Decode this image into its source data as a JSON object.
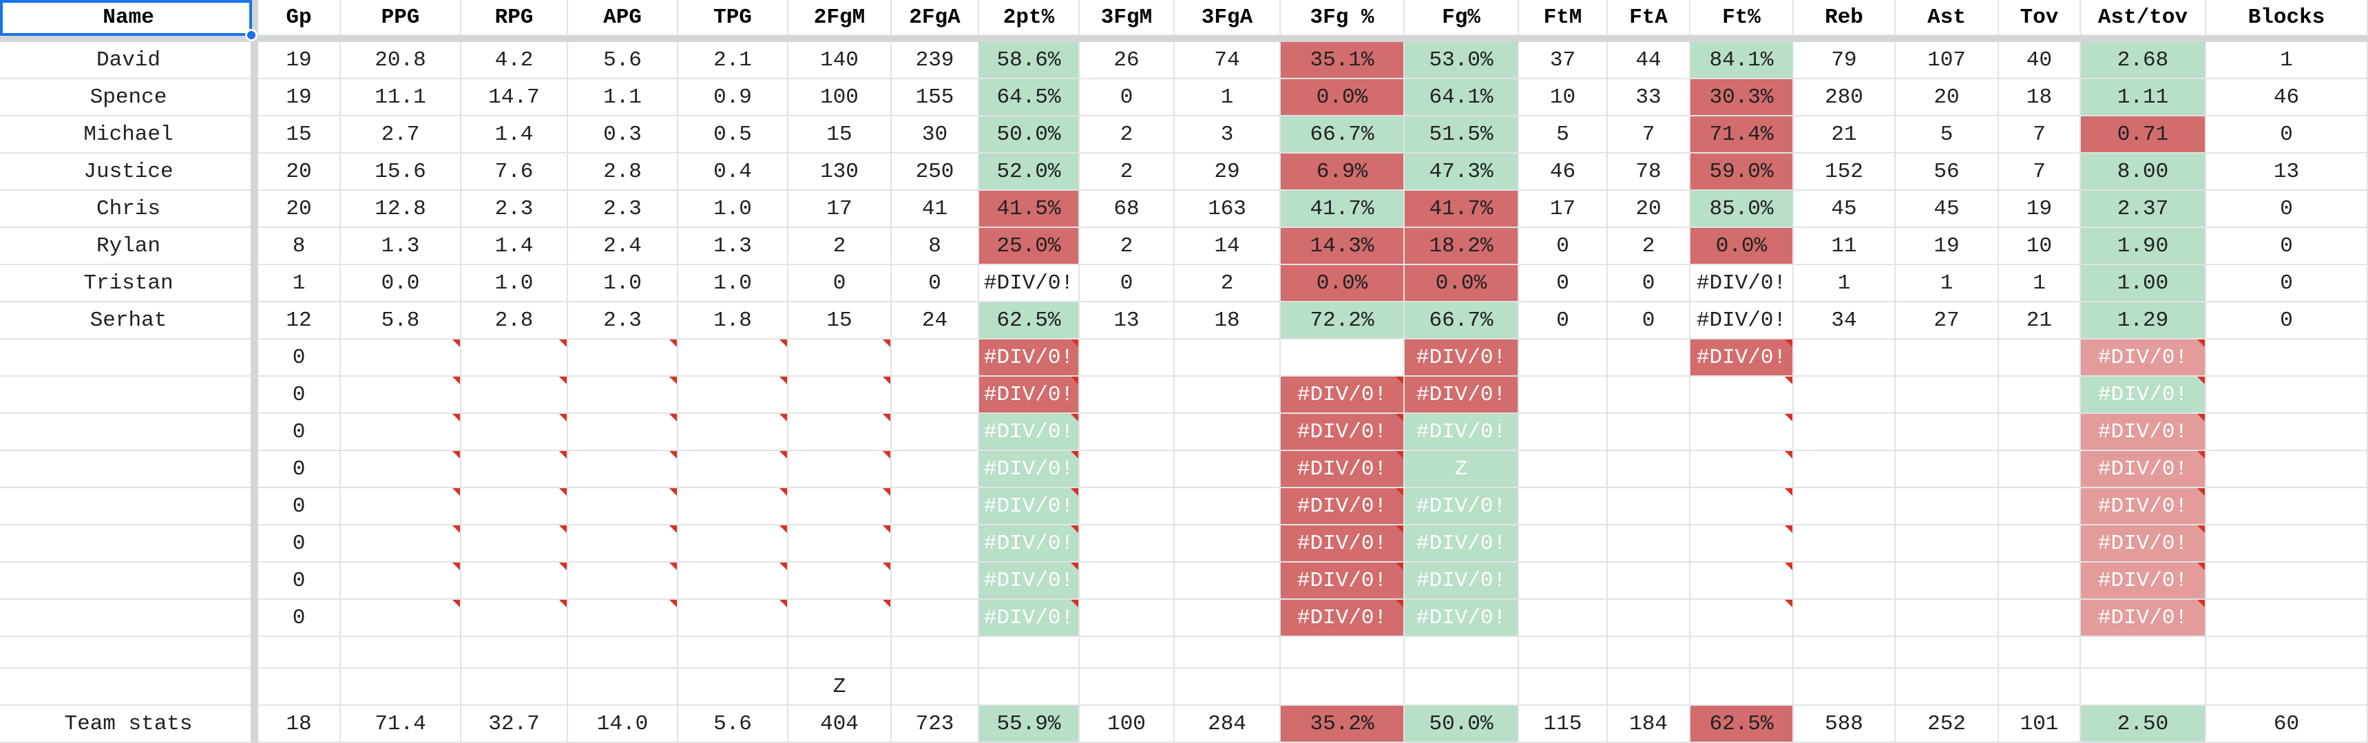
{
  "headers": [
    "Name",
    "Gp",
    "PPG",
    "RPG",
    "APG",
    "TPG",
    "2FgM",
    "2FgA",
    "2pt%",
    "3FgM",
    "3FgA",
    "3Fg %",
    "Fg%",
    "FtM",
    "FtA",
    "Ft%",
    "Reb",
    "Ast",
    "Tov",
    "Ast/tov",
    "Blocks"
  ],
  "players": [
    {
      "cells": [
        "David",
        "19",
        "20.8",
        "4.2",
        "5.6",
        "2.1",
        "140",
        "239",
        "58.6%",
        "26",
        "74",
        "35.1%",
        "53.0%",
        "37",
        "44",
        "84.1%",
        "79",
        "107",
        "40",
        "2.68",
        "1"
      ],
      "styles": {
        "8": "green",
        "11": "red",
        "12": "green",
        "15": "green",
        "19": "green"
      }
    },
    {
      "cells": [
        "Spence",
        "19",
        "11.1",
        "14.7",
        "1.1",
        "0.9",
        "100",
        "155",
        "64.5%",
        "0",
        "1",
        "0.0%",
        "64.1%",
        "10",
        "33",
        "30.3%",
        "280",
        "20",
        "18",
        "1.11",
        "46"
      ],
      "styles": {
        "8": "green",
        "11": "red",
        "12": "green",
        "15": "red",
        "19": "green"
      }
    },
    {
      "cells": [
        "Michael",
        "15",
        "2.7",
        "1.4",
        "0.3",
        "0.5",
        "15",
        "30",
        "50.0%",
        "2",
        "3",
        "66.7%",
        "51.5%",
        "5",
        "7",
        "71.4%",
        "21",
        "5",
        "7",
        "0.71",
        "0"
      ],
      "styles": {
        "8": "green",
        "11": "green",
        "12": "green",
        "15": "red",
        "19": "red"
      }
    },
    {
      "cells": [
        "Justice",
        "20",
        "15.6",
        "7.6",
        "2.8",
        "0.4",
        "130",
        "250",
        "52.0%",
        "2",
        "29",
        "6.9%",
        "47.3%",
        "46",
        "78",
        "59.0%",
        "152",
        "56",
        "7",
        "8.00",
        "13"
      ],
      "styles": {
        "8": "green",
        "11": "red",
        "12": "green",
        "15": "red",
        "19": "green"
      }
    },
    {
      "cells": [
        "Chris",
        "20",
        "12.8",
        "2.3",
        "2.3",
        "1.0",
        "17",
        "41",
        "41.5%",
        "68",
        "163",
        "41.7%",
        "41.7%",
        "17",
        "20",
        "85.0%",
        "45",
        "45",
        "19",
        "2.37",
        "0"
      ],
      "styles": {
        "8": "red",
        "11": "green",
        "12": "red",
        "15": "green",
        "19": "green"
      }
    },
    {
      "cells": [
        "Rylan",
        "8",
        "1.3",
        "1.4",
        "2.4",
        "1.3",
        "2",
        "8",
        "25.0%",
        "2",
        "14",
        "14.3%",
        "18.2%",
        "0",
        "2",
        "0.0%",
        "11",
        "19",
        "10",
        "1.90",
        "0"
      ],
      "styles": {
        "8": "red",
        "11": "red",
        "12": "red",
        "15": "red",
        "19": "green"
      }
    },
    {
      "cells": [
        "Tristan",
        "1",
        "0.0",
        "1.0",
        "1.0",
        "1.0",
        "0",
        "0",
        "#DIV/0!",
        "0",
        "2",
        "0.0%",
        "0.0%",
        "0",
        "0",
        "#DIV/0!",
        "1",
        "1",
        "1",
        "1.00",
        "0"
      ],
      "styles": {
        "11": "red",
        "12": "red",
        "19": "green"
      }
    },
    {
      "cells": [
        "Serhat",
        "12",
        "5.8",
        "2.8",
        "2.3",
        "1.8",
        "15",
        "24",
        "62.5%",
        "13",
        "18",
        "72.2%",
        "66.7%",
        "0",
        "0",
        "#DIV/0!",
        "34",
        "27",
        "21",
        "1.29",
        "0"
      ],
      "styles": {
        "8": "green",
        "11": "green",
        "12": "green",
        "19": "green"
      }
    }
  ],
  "blank_rows": [
    {
      "gp": "0",
      "c8": "#DIV/0!",
      "s8": "red",
      "c11": "",
      "s11": "",
      "c12": "#DIV/0!",
      "s12": "red",
      "c15": "#DIV/0!",
      "s15": "red",
      "c19": "#DIV/0!",
      "s19": "lred"
    },
    {
      "gp": "0",
      "c8": "#DIV/0!",
      "s8": "red",
      "c11": "#DIV/0!",
      "s11": "red",
      "c12": "#DIV/0!",
      "s12": "red",
      "c15": "",
      "s15": "",
      "c19": "#DIV/0!",
      "s19": "green"
    },
    {
      "gp": "0",
      "c8": "#DIV/0!",
      "s8": "green",
      "c11": "#DIV/0!",
      "s11": "red",
      "c12": "#DIV/0!",
      "s12": "green",
      "c15": "",
      "s15": "",
      "c19": "#DIV/0!",
      "s19": "lred"
    },
    {
      "gp": "0",
      "c8": "#DIV/0!",
      "s8": "green",
      "c11": "#DIV/0!",
      "s11": "red",
      "c12": "Z",
      "s12": "green",
      "c15": "",
      "s15": "",
      "c19": "#DIV/0!",
      "s19": "lred"
    },
    {
      "gp": "0",
      "c8": "#DIV/0!",
      "s8": "green",
      "c11": "#DIV/0!",
      "s11": "red",
      "c12": "#DIV/0!",
      "s12": "green",
      "c15": "",
      "s15": "",
      "c19": "#DIV/0!",
      "s19": "lred"
    },
    {
      "gp": "0",
      "c8": "#DIV/0!",
      "s8": "green",
      "c11": "#DIV/0!",
      "s11": "red",
      "c12": "#DIV/0!",
      "s12": "green",
      "c15": "",
      "s15": "",
      "c19": "#DIV/0!",
      "s19": "lred"
    },
    {
      "gp": "0",
      "c8": "#DIV/0!",
      "s8": "green",
      "c11": "#DIV/0!",
      "s11": "red",
      "c12": "#DIV/0!",
      "s12": "green",
      "c15": "",
      "s15": "",
      "c19": "#DIV/0!",
      "s19": "lred"
    },
    {
      "gp": "0",
      "c8": "#DIV/0!",
      "s8": "green",
      "c11": "#DIV/0!",
      "s11": "red",
      "c12": "#DIV/0!",
      "s12": "green",
      "c15": "",
      "s15": "",
      "c19": "#DIV/0!",
      "s19": "lred"
    }
  ],
  "stray_cell_text": "Z",
  "team": {
    "cells": [
      "Team stats",
      "18",
      "71.4",
      "32.7",
      "14.0",
      "5.6",
      "404",
      "723",
      "55.9%",
      "100",
      "284",
      "35.2%",
      "50.0%",
      "115",
      "184",
      "62.5%",
      "588",
      "252",
      "101",
      "2.50",
      "60"
    ],
    "styles": {
      "8": "green",
      "11": "red",
      "12": "green",
      "15": "red",
      "19": "green"
    }
  },
  "colors": {
    "red": "#d36c6c",
    "green": "#b8dfc8",
    "light_red": "#e39b9b",
    "selection": "#1a73e8"
  }
}
